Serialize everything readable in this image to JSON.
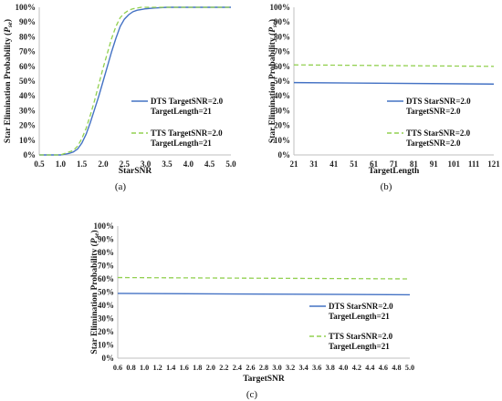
{
  "colors": {
    "dts": "#4472c4",
    "tts": "#92d050",
    "axis": "#bfbfbf"
  },
  "chart_data": [
    {
      "type": "line",
      "panel_label": "(a)",
      "xlabel": "StarSNR",
      "ylabel": "Star Elimination Probability (",
      "ylabel_var": "P",
      "ylabel_sub": "se",
      "ylabel_close": ")",
      "ylim": [
        0,
        100
      ],
      "y_ticks": [
        "0%",
        "10%",
        "20%",
        "30%",
        "40%",
        "50%",
        "60%",
        "70%",
        "80%",
        "90%",
        "100%"
      ],
      "x_ticks": [
        "0.5",
        "1.0",
        "1.5",
        "2.0",
        "2.5",
        "3.0",
        "3.5",
        "4.0",
        "4.5",
        "5.0"
      ],
      "x_tick_values": [
        0.5,
        1.0,
        1.5,
        2.0,
        2.5,
        3.0,
        3.5,
        4.0,
        4.5,
        5.0
      ],
      "xlim": [
        0.5,
        5.0
      ],
      "legend_position": "right",
      "series": [
        {
          "name_line1": "DTS TargetSNR=2.0",
          "name_line2": "TargetLength=21",
          "style": "solid",
          "x": [
            0.5,
            1.0,
            1.1,
            1.2,
            1.3,
            1.4,
            1.5,
            1.6,
            1.7,
            1.8,
            1.9,
            2.0,
            2.1,
            2.2,
            2.3,
            2.4,
            2.5,
            2.6,
            2.7,
            2.8,
            2.9,
            3.0,
            3.2,
            3.5,
            4.0,
            4.5,
            5.0
          ],
          "y": [
            0,
            0,
            0.5,
            1,
            2,
            4,
            8,
            14,
            22,
            31,
            40,
            50,
            60,
            70,
            79,
            87,
            92,
            95,
            97,
            98,
            98.5,
            99,
            99.5,
            100,
            100,
            100,
            100
          ]
        },
        {
          "name_line1": "TTS TargetSNR=2.0",
          "name_line2": "TargetLength=21",
          "style": "dashed",
          "x": [
            0.5,
            1.0,
            1.1,
            1.2,
            1.3,
            1.4,
            1.5,
            1.6,
            1.7,
            1.8,
            1.9,
            2.0,
            2.1,
            2.2,
            2.3,
            2.4,
            2.5,
            2.6,
            2.7,
            2.8,
            2.9,
            3.0,
            3.2,
            3.5,
            4.0,
            4.5,
            5.0
          ],
          "y": [
            0,
            0,
            1,
            2,
            3,
            6,
            11,
            18,
            27,
            37,
            48,
            59,
            69,
            79,
            87,
            93,
            96,
            98,
            99,
            99.5,
            100,
            100,
            100,
            100,
            100,
            100,
            100
          ]
        }
      ]
    },
    {
      "type": "line",
      "panel_label": "(b)",
      "xlabel": "TargetLength",
      "ylabel": "Star Elimination Probability (",
      "ylabel_var": "P",
      "ylabel_sub": "se",
      "ylabel_close": ")",
      "ylim": [
        0,
        100
      ],
      "y_ticks": [
        "0%",
        "10%",
        "20%",
        "30%",
        "40%",
        "50%",
        "60%",
        "70%",
        "80%",
        "90%",
        "100%"
      ],
      "x_ticks": [
        "21",
        "31",
        "41",
        "51",
        "61",
        "71",
        "81",
        "91",
        "101",
        "111",
        "121"
      ],
      "x_tick_values": [
        21,
        31,
        41,
        51,
        61,
        71,
        81,
        91,
        101,
        111,
        121
      ],
      "xlim": [
        21,
        121
      ],
      "legend_position": "right",
      "series": [
        {
          "name_line1": "DTS StarSNR=2.0",
          "name_line2": "TargetSNR=2.0",
          "style": "solid",
          "x": [
            21,
            121
          ],
          "y": [
            49,
            48
          ]
        },
        {
          "name_line1": "TTS StarSNR=2.0",
          "name_line2": "TargetSNR=2.0",
          "style": "dashed",
          "x": [
            21,
            121
          ],
          "y": [
            61,
            60
          ]
        }
      ]
    },
    {
      "type": "line",
      "panel_label": "(c)",
      "xlabel": "TargetSNR",
      "ylabel": "Star Elimination Probability (",
      "ylabel_var": "P",
      "ylabel_sub": "se",
      "ylabel_close": ")",
      "ylim": [
        0,
        100
      ],
      "y_ticks": [
        "0%",
        "10%",
        "20%",
        "30%",
        "40%",
        "50%",
        "60%",
        "70%",
        "80%",
        "90%",
        "100%"
      ],
      "x_ticks": [
        "0.6",
        "0.8",
        "1.0",
        "1.2",
        "1.4",
        "1.6",
        "1.8",
        "2.0",
        "2.2",
        "2.4",
        "2.6",
        "2.8",
        "3.0",
        "3.2",
        "3.4",
        "3.6",
        "3.8",
        "4.0",
        "4.2",
        "4.4",
        "4.6",
        "4.8",
        "5.0"
      ],
      "x_tick_values": [
        0.6,
        0.8,
        1.0,
        1.2,
        1.4,
        1.6,
        1.8,
        2.0,
        2.2,
        2.4,
        2.6,
        2.8,
        3.0,
        3.2,
        3.4,
        3.6,
        3.8,
        4.0,
        4.2,
        4.4,
        4.6,
        4.8,
        5.0
      ],
      "xlim": [
        0.6,
        5.0
      ],
      "legend_position": "right",
      "series": [
        {
          "name_line1": "DTS StarSNR=2.0",
          "name_line2": "TargetLength=21",
          "style": "solid",
          "x": [
            0.6,
            5.0
          ],
          "y": [
            49,
            48
          ]
        },
        {
          "name_line1": "TTS StarSNR=2.0",
          "name_line2": "TargetLength=21",
          "style": "dashed",
          "x": [
            0.6,
            5.0
          ],
          "y": [
            61,
            60
          ]
        }
      ]
    }
  ]
}
